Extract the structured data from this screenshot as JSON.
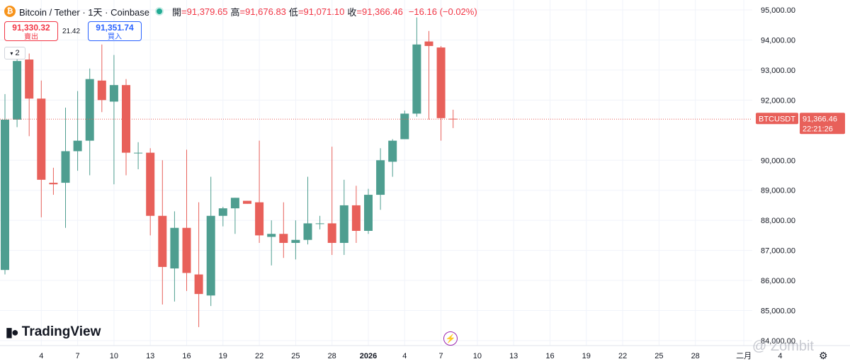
{
  "header": {
    "symbol": "Bitcoin / Tether · 1天 · Coinbase",
    "open_label": "開",
    "open_value": "=91,379.65",
    "high_label": "高",
    "high_value": "=91,676.83",
    "low_label": "低",
    "low_value": "=91,071.10",
    "close_label": "收",
    "close_value": "=91,366.46",
    "change": "−16.16 (−0.02%)"
  },
  "trade": {
    "sell_price": "91,330.32",
    "sell_label": "賣出",
    "spread": "21.42",
    "buy_price": "91,351.74",
    "buy_label": "買入"
  },
  "collapse_count": "2",
  "branding": {
    "logo_text": "TradingView",
    "watermark": "@ Zombit"
  },
  "colors": {
    "up": "#4e9e90",
    "down": "#e8605a",
    "price_line": "#e8605a"
  },
  "price_label": {
    "symbol": "BTCUSDT",
    "price": "91,366.46",
    "countdown": "22:21:26"
  },
  "chart_data": {
    "type": "candlestick",
    "y_ticks": [
      "95,000.00",
      "94,000.00",
      "93,000.00",
      "92,000.00",
      "90,000.00",
      "89,000.00",
      "88,000.00",
      "87,000.00",
      "86,000.00",
      "85,000.00",
      "84,000.00"
    ],
    "y_tick_values": [
      95000,
      94000,
      93000,
      92000,
      90000,
      89000,
      88000,
      87000,
      86000,
      85000,
      84000
    ],
    "ylim": [
      84000,
      95300
    ],
    "x_ticks": [
      {
        "label": "4",
        "i": 3
      },
      {
        "label": "7",
        "i": 6
      },
      {
        "label": "10",
        "i": 9
      },
      {
        "label": "13",
        "i": 12
      },
      {
        "label": "16",
        "i": 15
      },
      {
        "label": "19",
        "i": 18
      },
      {
        "label": "22",
        "i": 21
      },
      {
        "label": "25",
        "i": 24
      },
      {
        "label": "28",
        "i": 27
      },
      {
        "label": "2026",
        "i": 30
      },
      {
        "label": "4",
        "i": 33
      },
      {
        "label": "7",
        "i": 36
      },
      {
        "label": "10",
        "i": 39
      },
      {
        "label": "13",
        "i": 42
      },
      {
        "label": "16",
        "i": 45
      },
      {
        "label": "19",
        "i": 48
      },
      {
        "label": "22",
        "i": 51
      },
      {
        "label": "25",
        "i": 54
      },
      {
        "label": "28",
        "i": 57
      },
      {
        "label": "二月",
        "i": 61
      },
      {
        "label": "4",
        "i": 64
      }
    ],
    "candles": [
      {
        "o": 86350,
        "h": 92200,
        "l": 86200,
        "c": 91350
      },
      {
        "o": 91350,
        "h": 93700,
        "l": 91100,
        "c": 93300
      },
      {
        "o": 93350,
        "h": 93550,
        "l": 90800,
        "c": 92050
      },
      {
        "o": 92050,
        "h": 92650,
        "l": 88100,
        "c": 89350
      },
      {
        "o": 89250,
        "h": 89750,
        "l": 88850,
        "c": 89200
      },
      {
        "o": 89250,
        "h": 91750,
        "l": 87750,
        "c": 90300
      },
      {
        "o": 90300,
        "h": 92300,
        "l": 89650,
        "c": 90650
      },
      {
        "o": 90650,
        "h": 93050,
        "l": 89500,
        "c": 92700
      },
      {
        "o": 92650,
        "h": 93850,
        "l": 91600,
        "c": 92000
      },
      {
        "o": 91950,
        "h": 93500,
        "l": 89200,
        "c": 92500
      },
      {
        "o": 92500,
        "h": 92700,
        "l": 89500,
        "c": 90250
      },
      {
        "o": 90250,
        "h": 90600,
        "l": 89700,
        "c": 90250
      },
      {
        "o": 90250,
        "h": 90400,
        "l": 87500,
        "c": 88150
      },
      {
        "o": 88150,
        "h": 90000,
        "l": 85200,
        "c": 86450
      },
      {
        "o": 86400,
        "h": 88300,
        "l": 85300,
        "c": 87750
      },
      {
        "o": 87750,
        "h": 90350,
        "l": 85650,
        "c": 86250
      },
      {
        "o": 86200,
        "h": 88600,
        "l": 84450,
        "c": 85550
      },
      {
        "o": 85500,
        "h": 89450,
        "l": 85150,
        "c": 88150
      },
      {
        "o": 88150,
        "h": 88450,
        "l": 87800,
        "c": 88400
      },
      {
        "o": 88400,
        "h": 88750,
        "l": 87550,
        "c": 88750
      },
      {
        "o": 88650,
        "h": 88650,
        "l": 88550,
        "c": 88550
      },
      {
        "o": 88600,
        "h": 90650,
        "l": 87250,
        "c": 87500
      },
      {
        "o": 87450,
        "h": 88000,
        "l": 86500,
        "c": 87550
      },
      {
        "o": 87550,
        "h": 88600,
        "l": 86750,
        "c": 87250
      },
      {
        "o": 87250,
        "h": 88000,
        "l": 86700,
        "c": 87350
      },
      {
        "o": 87350,
        "h": 89450,
        "l": 87200,
        "c": 87900
      },
      {
        "o": 87900,
        "h": 88150,
        "l": 87700,
        "c": 87900
      },
      {
        "o": 87900,
        "h": 90450,
        "l": 86850,
        "c": 87250
      },
      {
        "o": 87250,
        "h": 89350,
        "l": 86850,
        "c": 88500
      },
      {
        "o": 88500,
        "h": 89150,
        "l": 87250,
        "c": 87650
      },
      {
        "o": 87650,
        "h": 89050,
        "l": 87550,
        "c": 88850
      },
      {
        "o": 88850,
        "h": 90400,
        "l": 88350,
        "c": 90000
      },
      {
        "o": 89950,
        "h": 90700,
        "l": 89450,
        "c": 90650
      },
      {
        "o": 90700,
        "h": 91650,
        "l": 90700,
        "c": 91550
      },
      {
        "o": 91550,
        "h": 94750,
        "l": 91450,
        "c": 93850
      },
      {
        "o": 93950,
        "h": 94300,
        "l": 91350,
        "c": 93800
      },
      {
        "o": 93750,
        "h": 93800,
        "l": 90650,
        "c": 91400
      },
      {
        "o": 91380,
        "h": 91680,
        "l": 91070,
        "c": 91366
      }
    ]
  }
}
